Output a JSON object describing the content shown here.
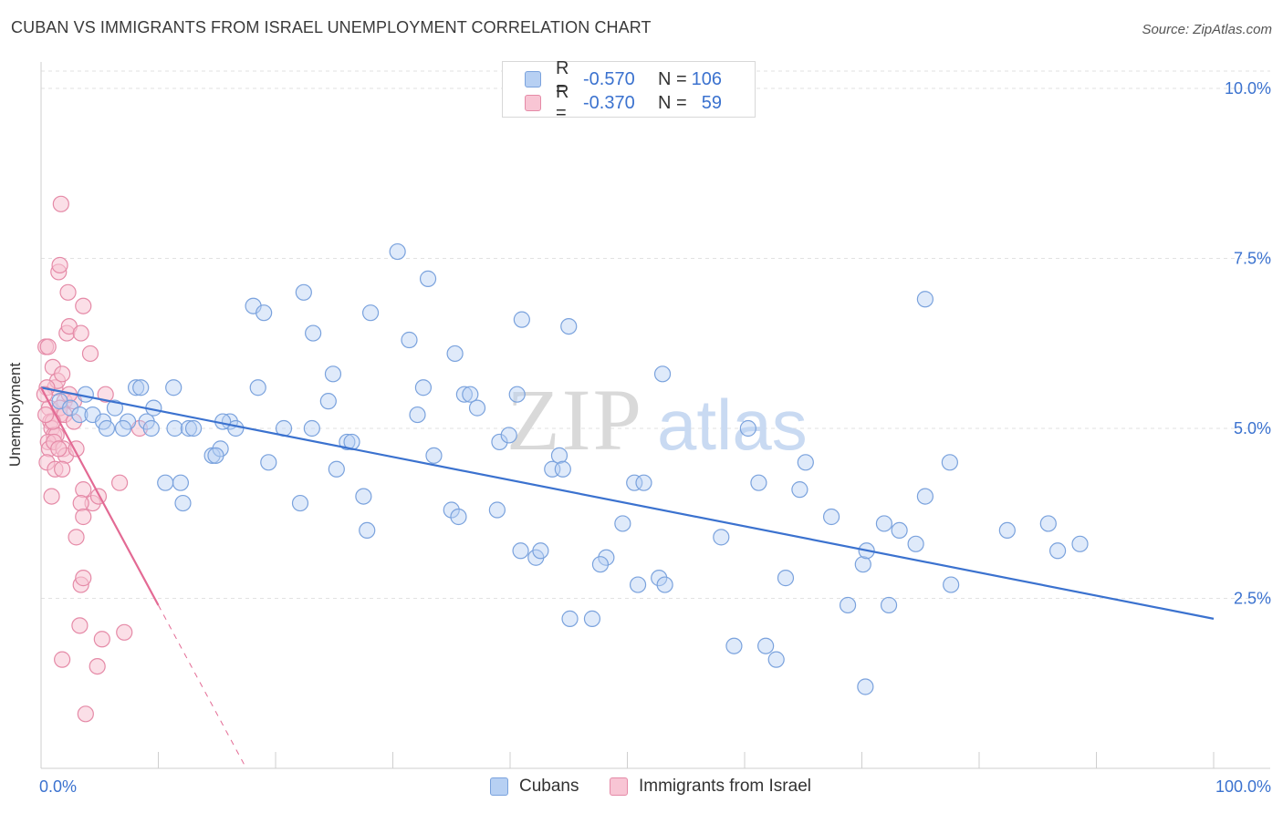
{
  "header": {
    "title": "CUBAN VS IMMIGRANTS FROM ISRAEL UNEMPLOYMENT CORRELATION CHART",
    "source": "Source: ZipAtlas.com"
  },
  "legend": {
    "series": [
      {
        "swatch_fill": "#b7d0f3",
        "swatch_stroke": "#7aa2dd",
        "r_label": "R =",
        "r_value": "-0.570",
        "n_label": "N =",
        "n_value": "106"
      },
      {
        "swatch_fill": "#f8c5d4",
        "swatch_stroke": "#e58aa7",
        "r_label": "R =",
        "r_value": "-0.370",
        "n_label": "N =",
        "n_value": "59"
      }
    ],
    "bottom": [
      {
        "label": "Cubans",
        "swatch_fill": "#b7d0f3",
        "swatch_stroke": "#7aa2dd"
      },
      {
        "label": "Immigrants from Israel",
        "swatch_fill": "#f8c5d4",
        "swatch_stroke": "#e58aa7"
      }
    ]
  },
  "chart_data": {
    "type": "scatter",
    "title": "CUBAN VS IMMIGRANTS FROM ISRAEL UNEMPLOYMENT CORRELATION CHART",
    "xlabel": "",
    "ylabel": "Unemployment",
    "x_tick_labels": [
      "0.0%",
      "100.0%"
    ],
    "y_tick_labels": [
      "2.5%",
      "5.0%",
      "7.5%",
      "10.0%"
    ],
    "y_ticks": [
      2.5,
      5.0,
      7.5,
      10.0
    ],
    "xlim": [
      0,
      100
    ],
    "ylim": [
      0,
      10.4
    ],
    "grid": true,
    "watermark": "ZIPatlas",
    "colors": {
      "cubans": "#3b72cf",
      "israel": "#e36a94",
      "cubans_fill": "#b7d0f3",
      "israel_fill": "#f8c5d4"
    },
    "series": [
      {
        "name": "Cubans",
        "points": [
          [
            1.6,
            5.4
          ],
          [
            2.5,
            5.3
          ],
          [
            3.3,
            5.2
          ],
          [
            3.8,
            5.5
          ],
          [
            4.4,
            5.2
          ],
          [
            5.3,
            5.1
          ],
          [
            5.6,
            5.0
          ],
          [
            6.3,
            5.3
          ],
          [
            7.4,
            5.1
          ],
          [
            8.1,
            5.6
          ],
          [
            9.0,
            5.1
          ],
          [
            9.4,
            5.0
          ],
          [
            8.5,
            5.6
          ],
          [
            9.6,
            5.3
          ],
          [
            11.4,
            5.0
          ],
          [
            11.3,
            5.6
          ],
          [
            11.9,
            4.2
          ],
          [
            10.6,
            4.2
          ],
          [
            12.1,
            3.9
          ],
          [
            14.6,
            4.6
          ],
          [
            15.3,
            4.7
          ],
          [
            12.6,
            5.0
          ],
          [
            16.1,
            5.1
          ],
          [
            16.6,
            5.0
          ],
          [
            18.5,
            5.6
          ],
          [
            15.5,
            5.1
          ],
          [
            19.4,
            4.5
          ],
          [
            20.7,
            5.0
          ],
          [
            22.1,
            3.9
          ],
          [
            23.1,
            5.0
          ],
          [
            22.4,
            7.0
          ],
          [
            18.1,
            6.8
          ],
          [
            14.9,
            4.6
          ],
          [
            24.5,
            5.4
          ],
          [
            24.9,
            5.8
          ],
          [
            25.2,
            4.4
          ],
          [
            26.1,
            4.8
          ],
          [
            26.5,
            4.8
          ],
          [
            27.8,
            3.5
          ],
          [
            27.5,
            4.0
          ],
          [
            23.2,
            6.4
          ],
          [
            19.0,
            6.7
          ],
          [
            28.1,
            6.7
          ],
          [
            30.4,
            7.6
          ],
          [
            31.4,
            6.3
          ],
          [
            32.1,
            5.2
          ],
          [
            32.6,
            5.6
          ],
          [
            33.0,
            7.2
          ],
          [
            33.5,
            4.6
          ],
          [
            35.0,
            3.8
          ],
          [
            35.3,
            6.1
          ],
          [
            35.6,
            3.7
          ],
          [
            36.1,
            5.5
          ],
          [
            36.6,
            5.5
          ],
          [
            37.2,
            5.3
          ],
          [
            38.9,
            3.8
          ],
          [
            39.1,
            4.8
          ],
          [
            39.9,
            4.9
          ],
          [
            40.6,
            5.5
          ],
          [
            41.0,
            6.6
          ],
          [
            42.2,
            3.1
          ],
          [
            42.6,
            3.2
          ],
          [
            43.6,
            4.4
          ],
          [
            44.2,
            4.6
          ],
          [
            45.1,
            2.2
          ],
          [
            45.0,
            6.5
          ],
          [
            48.2,
            3.1
          ],
          [
            49.6,
            3.6
          ],
          [
            50.6,
            4.2
          ],
          [
            51.4,
            4.2
          ],
          [
            50.9,
            2.7
          ],
          [
            52.7,
            2.8
          ],
          [
            53.2,
            2.7
          ],
          [
            53.0,
            5.8
          ],
          [
            58.0,
            3.4
          ],
          [
            60.3,
            5.0
          ],
          [
            61.2,
            4.2
          ],
          [
            59.1,
            1.8
          ],
          [
            61.8,
            1.8
          ],
          [
            62.7,
            1.6
          ],
          [
            63.5,
            2.8
          ],
          [
            64.7,
            4.1
          ],
          [
            65.2,
            4.5
          ],
          [
            67.4,
            3.7
          ],
          [
            68.8,
            2.4
          ],
          [
            70.1,
            3.0
          ],
          [
            70.4,
            3.2
          ],
          [
            70.3,
            1.2
          ],
          [
            71.9,
            3.6
          ],
          [
            72.3,
            2.4
          ],
          [
            73.2,
            3.5
          ],
          [
            74.6,
            3.3
          ],
          [
            75.4,
            4.0
          ],
          [
            75.4,
            6.9
          ],
          [
            77.6,
            2.7
          ],
          [
            77.5,
            4.5
          ],
          [
            82.4,
            3.5
          ],
          [
            85.9,
            3.6
          ],
          [
            86.7,
            3.2
          ],
          [
            88.6,
            3.3
          ],
          [
            47.0,
            2.2
          ],
          [
            44.5,
            4.4
          ],
          [
            40.9,
            3.2
          ],
          [
            13.0,
            5.0
          ],
          [
            7.0,
            5.0
          ],
          [
            47.7,
            3.0
          ]
        ]
      },
      {
        "name": "Immigrants from Israel",
        "points": [
          [
            0.4,
            6.2
          ],
          [
            0.6,
            6.2
          ],
          [
            1.0,
            5.9
          ],
          [
            1.2,
            5.6
          ],
          [
            1.4,
            5.7
          ],
          [
            1.6,
            5.2
          ],
          [
            1.8,
            5.8
          ],
          [
            2.0,
            5.4
          ],
          [
            2.2,
            6.4
          ],
          [
            2.4,
            6.5
          ],
          [
            2.3,
            7.0
          ],
          [
            1.5,
            7.3
          ],
          [
            1.6,
            7.4
          ],
          [
            1.7,
            8.3
          ],
          [
            3.6,
            6.8
          ],
          [
            3.4,
            6.4
          ],
          [
            4.2,
            6.1
          ],
          [
            0.5,
            5.6
          ],
          [
            0.7,
            5.3
          ],
          [
            0.8,
            5.1
          ],
          [
            0.9,
            5.0
          ],
          [
            1.1,
            4.9
          ],
          [
            1.3,
            4.9
          ],
          [
            0.6,
            4.8
          ],
          [
            0.7,
            4.7
          ],
          [
            1.1,
            4.8
          ],
          [
            1.9,
            4.7
          ],
          [
            2.1,
            4.6
          ],
          [
            0.5,
            4.5
          ],
          [
            1.2,
            4.4
          ],
          [
            1.8,
            4.4
          ],
          [
            2.8,
            5.4
          ],
          [
            3.0,
            4.7
          ],
          [
            0.9,
            4.0
          ],
          [
            3.6,
            4.1
          ],
          [
            4.4,
            3.9
          ],
          [
            4.9,
            4.0
          ],
          [
            3.0,
            3.4
          ],
          [
            3.4,
            3.9
          ],
          [
            3.6,
            3.7
          ],
          [
            6.7,
            4.2
          ],
          [
            5.5,
            5.5
          ],
          [
            8.4,
            5.0
          ],
          [
            1.6,
            5.3
          ],
          [
            2.0,
            5.2
          ],
          [
            0.3,
            5.5
          ],
          [
            1.0,
            5.1
          ],
          [
            3.4,
            2.7
          ],
          [
            3.6,
            2.8
          ],
          [
            3.3,
            2.1
          ],
          [
            1.8,
            1.6
          ],
          [
            5.2,
            1.9
          ],
          [
            7.1,
            2.0
          ],
          [
            4.8,
            1.5
          ],
          [
            3.8,
            0.8
          ],
          [
            2.8,
            5.1
          ],
          [
            2.4,
            5.5
          ],
          [
            0.4,
            5.2
          ],
          [
            1.5,
            4.7
          ]
        ]
      }
    ],
    "trendlines": [
      {
        "series": "Cubans",
        "from": [
          0,
          5.6
        ],
        "to": [
          100,
          2.2
        ],
        "style": "solid"
      },
      {
        "series": "Immigrants from Israel",
        "from": [
          0,
          5.6
        ],
        "to": [
          10,
          2.4
        ],
        "style": "solid"
      },
      {
        "series": "Immigrants from Israel",
        "from": [
          10,
          2.4
        ],
        "to": [
          17.5,
          0.0
        ],
        "style": "dashed"
      }
    ]
  }
}
